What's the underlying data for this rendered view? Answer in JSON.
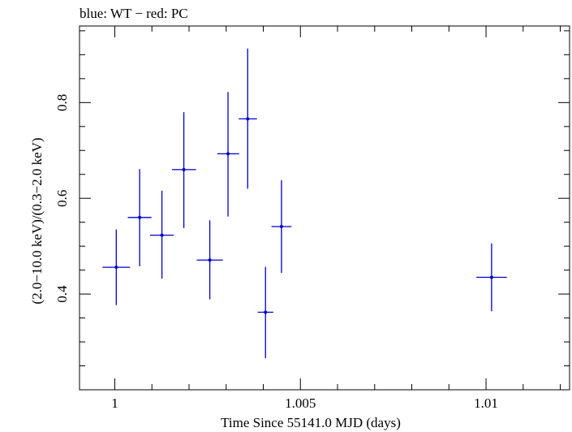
{
  "chart_data": {
    "type": "scatter",
    "title": "blue: WT − red: PC",
    "xlabel": "Time Since 55141.0 MJD (days)",
    "ylabel": "(2.0−10.0 keV)/(0.3−2.0 keV)",
    "xlim": [
      0.99905,
      1.01225
    ],
    "ylim": [
      0.2,
      0.96
    ],
    "x_ticks": [
      {
        "value": 1.0,
        "label": "1"
      },
      {
        "value": 1.005,
        "label": "1.005"
      },
      {
        "value": 1.01,
        "label": "1.01"
      }
    ],
    "y_ticks": [
      {
        "value": 0.4,
        "label": "0.4"
      },
      {
        "value": 0.6,
        "label": "0.6"
      },
      {
        "value": 0.8,
        "label": "0.8"
      }
    ],
    "grid": false,
    "series": [
      {
        "color": "#0000cc",
        "points": [
          {
            "x": 1.00004,
            "y": 0.456,
            "xlo": 0.99967,
            "xhi": 1.00041,
            "ylo": 0.377,
            "yhi": 0.535
          },
          {
            "x": 1.00067,
            "y": 0.56,
            "xlo": 1.00035,
            "xhi": 1.00099,
            "ylo": 0.458,
            "yhi": 0.661
          },
          {
            "x": 1.00127,
            "y": 0.523,
            "xlo": 1.00095,
            "xhi": 1.00159,
            "ylo": 0.432,
            "yhi": 0.616
          },
          {
            "x": 1.00186,
            "y": 0.66,
            "xlo": 1.00154,
            "xhi": 1.00219,
            "ylo": 0.538,
            "yhi": 0.78
          },
          {
            "x": 1.00256,
            "y": 0.471,
            "xlo": 1.00221,
            "xhi": 1.00291,
            "ylo": 0.389,
            "yhi": 0.554
          },
          {
            "x": 1.00305,
            "y": 0.693,
            "xlo": 1.00276,
            "xhi": 1.00335,
            "ylo": 0.562,
            "yhi": 0.822
          },
          {
            "x": 1.00358,
            "y": 0.766,
            "xlo": 1.00334,
            "xhi": 1.00383,
            "ylo": 0.62,
            "yhi": 0.913
          },
          {
            "x": 1.00406,
            "y": 0.362,
            "xlo": 1.00385,
            "xhi": 1.00427,
            "ylo": 0.266,
            "yhi": 0.457
          },
          {
            "x": 1.00449,
            "y": 0.541,
            "xlo": 1.00422,
            "xhi": 1.00476,
            "ylo": 0.444,
            "yhi": 0.638
          },
          {
            "x": 1.01015,
            "y": 0.435,
            "xlo": 1.00974,
            "xhi": 1.01056,
            "ylo": 0.364,
            "yhi": 0.506
          }
        ]
      }
    ]
  }
}
